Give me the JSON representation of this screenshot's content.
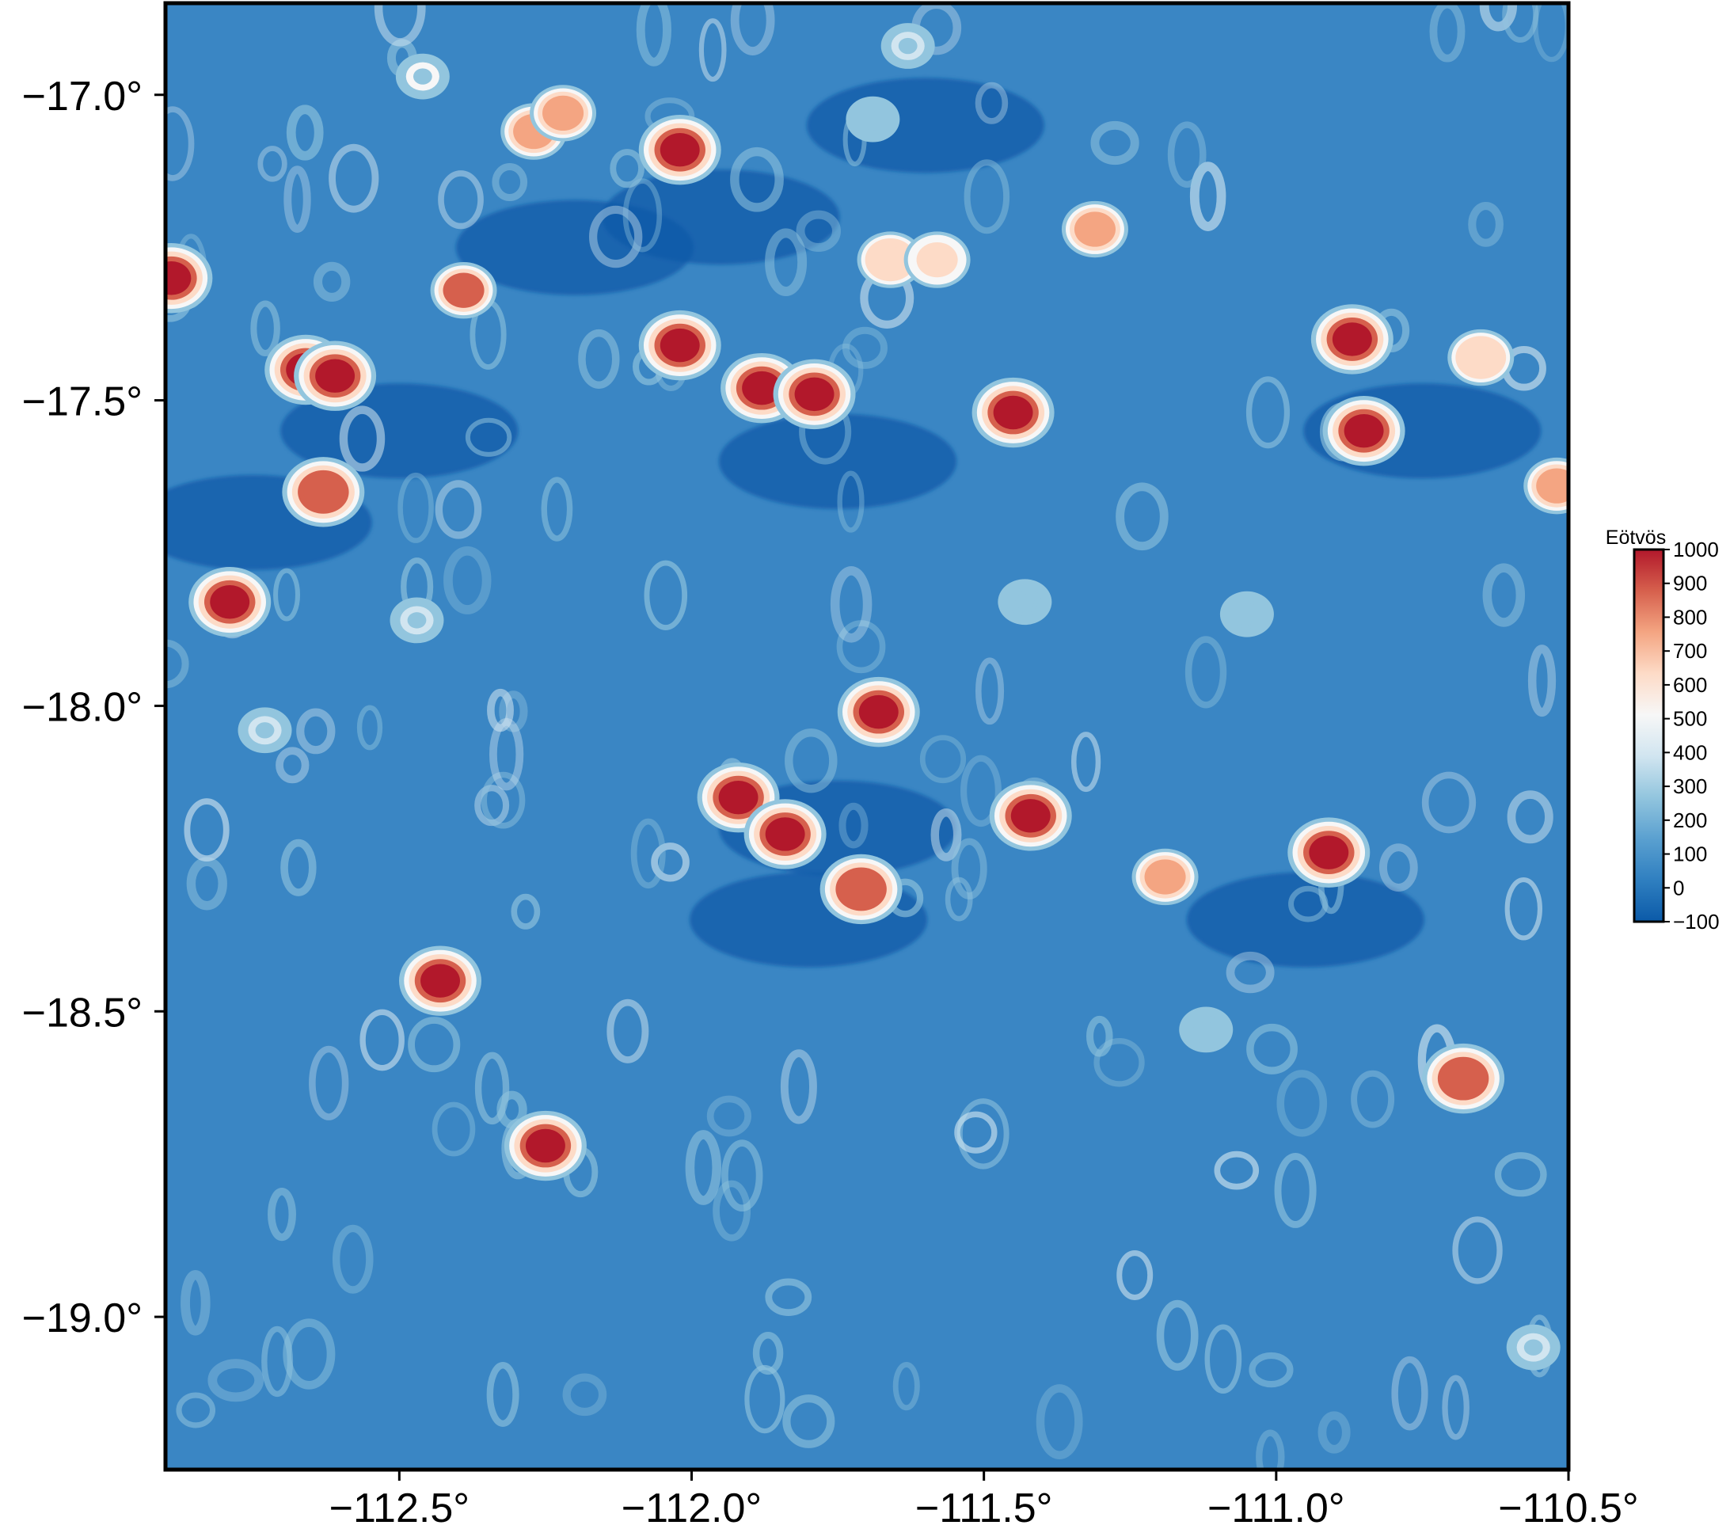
{
  "map": {
    "colorscale": {
      "name": "RdBu_r",
      "stops": [
        "#0b5aa8",
        "#2f7fc0",
        "#5aa0d0",
        "#92c5de",
        "#d1e5f0",
        "#f7f7f7",
        "#fddbc7",
        "#f4a582",
        "#d6604d",
        "#b2182b"
      ]
    },
    "background_color": "#3a86c4",
    "x_axis": {
      "range": [
        -112.9,
        -110.5
      ],
      "ticks": [
        {
          "value": -112.5,
          "label": "−112.5°"
        },
        {
          "value": -112.0,
          "label": "−112.0°"
        },
        {
          "value": -111.5,
          "label": "−111.5°"
        },
        {
          "value": -111.0,
          "label": "−111.0°"
        },
        {
          "value": -110.5,
          "label": "−110.5°"
        }
      ]
    },
    "y_axis": {
      "range": [
        -19.25,
        -16.85
      ],
      "ticks": [
        {
          "value": -17.0,
          "label": "−17.0°"
        },
        {
          "value": -17.5,
          "label": "−17.5°"
        },
        {
          "value": -18.0,
          "label": "−18.0°"
        },
        {
          "value": -18.5,
          "label": "−18.5°"
        },
        {
          "value": -19.0,
          "label": "−19.0°"
        }
      ]
    },
    "colorbar": {
      "title": "Eötvös",
      "range": [
        -100,
        1000
      ],
      "ticks": [
        {
          "value": 1000,
          "label": "1000"
        },
        {
          "value": 900,
          "label": "900"
        },
        {
          "value": 800,
          "label": "800"
        },
        {
          "value": 700,
          "label": "700"
        },
        {
          "value": 600,
          "label": "600"
        },
        {
          "value": 500,
          "label": "500"
        },
        {
          "value": 400,
          "label": "400"
        },
        {
          "value": 300,
          "label": "300"
        },
        {
          "value": 200,
          "label": "200"
        },
        {
          "value": 100,
          "label": "100"
        },
        {
          "value": 0,
          "label": "0"
        },
        {
          "value": -100,
          "label": "−100"
        }
      ]
    },
    "anomalies": [
      {
        "lon": -112.46,
        "lat": -16.97,
        "peak": 450
      },
      {
        "lon": -112.27,
        "lat": -17.06,
        "peak": 700
      },
      {
        "lon": -112.22,
        "lat": -17.03,
        "peak": 800
      },
      {
        "lon": -112.02,
        "lat": -17.09,
        "peak": 1000
      },
      {
        "lon": -111.63,
        "lat": -16.92,
        "peak": 350
      },
      {
        "lon": -111.69,
        "lat": -17.04,
        "peak": 300
      },
      {
        "lon": -111.31,
        "lat": -17.22,
        "peak": 700
      },
      {
        "lon": -111.66,
        "lat": -17.27,
        "peak": 650
      },
      {
        "lon": -111.58,
        "lat": -17.27,
        "peak": 600
      },
      {
        "lon": -112.89,
        "lat": -17.3,
        "peak": 950
      },
      {
        "lon": -112.39,
        "lat": -17.32,
        "peak": 850
      },
      {
        "lon": -112.66,
        "lat": -17.45,
        "peak": 1000
      },
      {
        "lon": -112.61,
        "lat": -17.46,
        "peak": 1000
      },
      {
        "lon": -112.02,
        "lat": -17.41,
        "peak": 1000
      },
      {
        "lon": -111.88,
        "lat": -17.48,
        "peak": 1000
      },
      {
        "lon": -111.79,
        "lat": -17.49,
        "peak": 1000
      },
      {
        "lon": -111.45,
        "lat": -17.52,
        "peak": 950
      },
      {
        "lon": -110.87,
        "lat": -17.4,
        "peak": 950
      },
      {
        "lon": -110.85,
        "lat": -17.55,
        "peak": 1000
      },
      {
        "lon": -110.65,
        "lat": -17.43,
        "peak": 650
      },
      {
        "lon": -110.52,
        "lat": -17.64,
        "peak": 700
      },
      {
        "lon": -112.63,
        "lat": -17.65,
        "peak": 900
      },
      {
        "lon": -112.79,
        "lat": -17.83,
        "peak": 1000
      },
      {
        "lon": -112.47,
        "lat": -17.86,
        "peak": 350
      },
      {
        "lon": -112.73,
        "lat": -18.04,
        "peak": 350
      },
      {
        "lon": -111.43,
        "lat": -17.83,
        "peak": 300
      },
      {
        "lon": -111.05,
        "lat": -17.85,
        "peak": 300
      },
      {
        "lon": -111.68,
        "lat": -18.01,
        "peak": 1000
      },
      {
        "lon": -111.92,
        "lat": -18.15,
        "peak": 1000
      },
      {
        "lon": -111.84,
        "lat": -18.21,
        "peak": 1000
      },
      {
        "lon": -111.71,
        "lat": -18.3,
        "peak": 900
      },
      {
        "lon": -111.42,
        "lat": -18.18,
        "peak": 1000
      },
      {
        "lon": -111.19,
        "lat": -18.28,
        "peak": 800
      },
      {
        "lon": -110.91,
        "lat": -18.24,
        "peak": 1000
      },
      {
        "lon": -112.43,
        "lat": -18.45,
        "peak": 1000
      },
      {
        "lon": -112.25,
        "lat": -18.72,
        "peak": 1000
      },
      {
        "lon": -110.68,
        "lat": -18.61,
        "peak": 900
      },
      {
        "lon": -110.56,
        "lat": -19.05,
        "peak": 350
      },
      {
        "lon": -111.12,
        "lat": -18.53,
        "peak": 300
      }
    ],
    "troughs": [
      {
        "lon": -112.2,
        "lat": -17.25
      },
      {
        "lon": -111.95,
        "lat": -17.2
      },
      {
        "lon": -111.75,
        "lat": -17.6
      },
      {
        "lon": -112.5,
        "lat": -17.55
      },
      {
        "lon": -111.75,
        "lat": -18.2
      },
      {
        "lon": -111.8,
        "lat": -18.35
      },
      {
        "lon": -110.95,
        "lat": -18.35
      },
      {
        "lon": -110.75,
        "lat": -17.55
      },
      {
        "lon": -112.75,
        "lat": -17.7
      },
      {
        "lon": -111.6,
        "lat": -17.05
      }
    ]
  }
}
